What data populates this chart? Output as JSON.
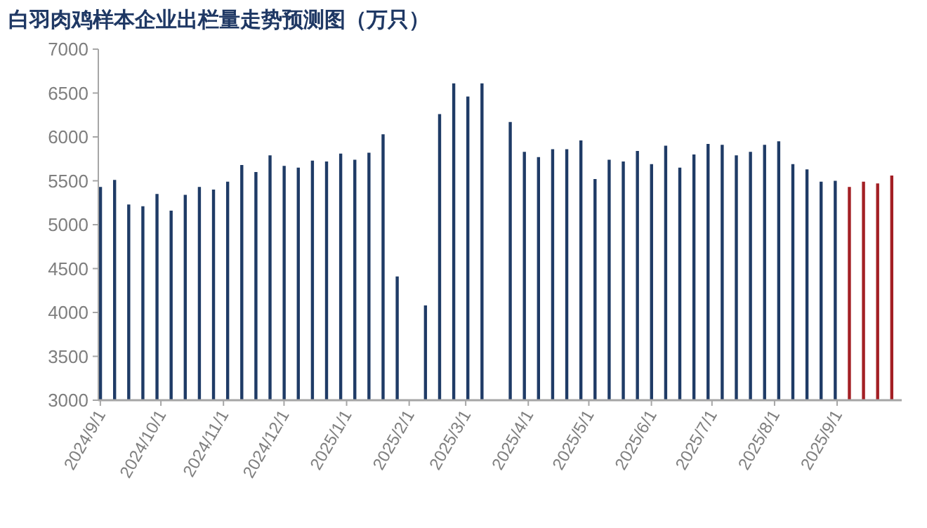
{
  "chart_data": {
    "type": "bar",
    "title": "白羽肉鸡样本企业出栏量走势预测图（万只）",
    "xlim": [
      "2024-08-31",
      "2025-10-03"
    ],
    "xticks": [
      {
        "value": "2024-09-01",
        "label": "2024/9/1"
      },
      {
        "value": "2024-10-01",
        "label": "2024/10/1"
      },
      {
        "value": "2024-11-01",
        "label": "2024/11/1"
      },
      {
        "value": "2024-12-01",
        "label": "2024/12/1"
      },
      {
        "value": "2025-01-01",
        "label": "2025/1/1"
      },
      {
        "value": "2025-02-01",
        "label": "2025/2/1"
      },
      {
        "value": "2025-03-01",
        "label": "2025/3/1"
      },
      {
        "value": "2025-04-01",
        "label": "2025/4/1"
      },
      {
        "value": "2025-05-01",
        "label": "2025/5/1"
      },
      {
        "value": "2025-06-01",
        "label": "2025/6/1"
      },
      {
        "value": "2025-07-01",
        "label": "2025/7/1"
      },
      {
        "value": "2025-08-01",
        "label": "2025/8/1"
      },
      {
        "value": "2025-09-01",
        "label": "2025/9/1"
      }
    ],
    "ylim": [
      3000,
      7000
    ],
    "yticks": [
      3000,
      3500,
      4000,
      4500,
      5000,
      5500,
      6000,
      6500,
      7000
    ],
    "series": [
      {
        "color": "#1f3b66",
        "x": [
          "2024-09-01",
          "2024-09-08",
          "2024-09-15",
          "2024-09-22",
          "2024-09-29",
          "2024-10-06",
          "2024-10-13",
          "2024-10-20",
          "2024-10-27",
          "2024-11-03",
          "2024-11-10",
          "2024-11-17",
          "2024-11-24",
          "2024-12-01",
          "2024-12-08",
          "2024-12-15",
          "2024-12-22",
          "2024-12-29",
          "2025-01-05",
          "2025-01-12",
          "2025-01-19",
          "2025-01-26",
          "2025-02-02",
          "2025-02-09",
          "2025-02-16",
          "2025-02-23",
          "2025-03-02",
          "2025-03-09",
          "2025-03-16",
          "2025-03-23",
          "2025-03-30",
          "2025-04-06",
          "2025-04-13",
          "2025-04-20",
          "2025-04-27",
          "2025-05-04",
          "2025-05-11",
          "2025-05-18",
          "2025-05-25",
          "2025-06-01",
          "2025-06-08",
          "2025-06-15",
          "2025-06-22",
          "2025-06-29",
          "2025-07-06",
          "2025-07-13",
          "2025-07-20",
          "2025-07-27",
          "2025-08-03",
          "2025-08-10",
          "2025-08-17",
          "2025-08-24",
          "2025-08-31"
        ],
        "values": [
          5430,
          5510,
          5230,
          5210,
          5350,
          5160,
          5340,
          5430,
          5400,
          5490,
          5680,
          5600,
          5790,
          5670,
          5650,
          5730,
          5720,
          5810,
          5740,
          5820,
          6030,
          4410,
          null,
          4080,
          6260,
          6610,
          6460,
          6610,
          null,
          6170,
          5830,
          5770,
          5860,
          5860,
          5960,
          5520,
          5740,
          5720,
          5840,
          5690,
          5900,
          5650,
          5800,
          5920,
          5910,
          5790,
          5830,
          5910,
          5950,
          5690,
          5630,
          5490,
          5500
        ]
      },
      {
        "color": "#a31f24",
        "x": [
          "2025-09-07",
          "2025-09-14",
          "2025-09-21",
          "2025-09-28"
        ],
        "values": [
          5430,
          5490,
          5470,
          5560
        ]
      }
    ]
  }
}
